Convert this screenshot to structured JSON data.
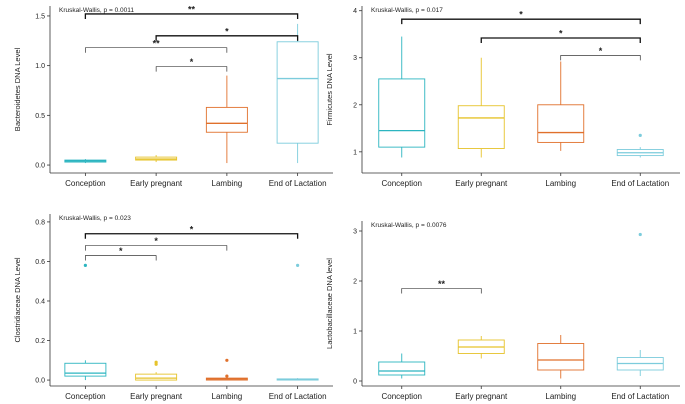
{
  "categories": [
    "Conception",
    "Early pregnant",
    "Lambing",
    "End of Lactation"
  ],
  "colors": {
    "Conception": "#2CB5C0",
    "Early pregnant": "#E6C32B",
    "Lambing": "#E0702C",
    "End of Lactation": "#7CCCDC"
  },
  "chart_data": [
    {
      "id": "bacteroidetes",
      "type": "box",
      "ylabel": "Bacteroidetes DNA Level",
      "test_label": "Kruskal-Wallis, p = 0.0011",
      "ylim": [
        -0.08,
        1.6
      ],
      "yticks": [
        0.0,
        0.5,
        1.0,
        1.5
      ],
      "ytick_labels": [
        "0.0",
        "0.5",
        "1.0",
        "1.5"
      ],
      "boxes": [
        {
          "category": "Conception",
          "min": 0.02,
          "q1": 0.03,
          "median": 0.04,
          "q3": 0.05,
          "max": 0.06,
          "outliers": []
        },
        {
          "category": "Early pregnant",
          "min": 0.03,
          "q1": 0.05,
          "median": 0.06,
          "q3": 0.08,
          "max": 0.1,
          "outliers": []
        },
        {
          "category": "Lambing",
          "min": 0.02,
          "q1": 0.33,
          "median": 0.42,
          "q3": 0.58,
          "max": 0.9,
          "outliers": []
        },
        {
          "category": "End of Lactation",
          "min": 0.02,
          "q1": 0.22,
          "median": 0.87,
          "q3": 1.24,
          "max": 1.42,
          "outliers": []
        }
      ],
      "brackets": [
        {
          "from": "Conception",
          "to": "End of Lactation",
          "y": 1.52,
          "label": "**",
          "bold": true
        },
        {
          "from": "Early pregnant",
          "to": "End of Lactation",
          "y": 1.3,
          "label": "*",
          "bold": true
        },
        {
          "from": "Conception",
          "to": "Lambing",
          "y": 1.18,
          "label": "**",
          "bold": false
        },
        {
          "from": "Early pregnant",
          "to": "Lambing",
          "y": 0.99,
          "label": "*",
          "bold": false
        }
      ]
    },
    {
      "id": "firmicutes",
      "type": "box",
      "ylabel": "Firmicutes DNA Level",
      "test_label": "Kruskal-Wallis, p = 0.017",
      "ylim": [
        0.55,
        4.1
      ],
      "yticks": [
        1,
        2,
        3,
        4
      ],
      "ytick_labels": [
        "1",
        "2",
        "3",
        "4"
      ],
      "boxes": [
        {
          "category": "Conception",
          "min": 0.88,
          "q1": 1.1,
          "median": 1.45,
          "q3": 2.55,
          "max": 3.45,
          "outliers": []
        },
        {
          "category": "Early pregnant",
          "min": 0.88,
          "q1": 1.07,
          "median": 1.72,
          "q3": 1.98,
          "max": 3.0,
          "outliers": []
        },
        {
          "category": "Lambing",
          "min": 1.02,
          "q1": 1.2,
          "median": 1.41,
          "q3": 2.0,
          "max": 2.92,
          "outliers": []
        },
        {
          "category": "End of Lactation",
          "min": 0.88,
          "q1": 0.92,
          "median": 0.98,
          "q3": 1.05,
          "max": 1.1,
          "outliers": [
            1.35
          ]
        }
      ],
      "brackets": [
        {
          "from": "Conception",
          "to": "End of Lactation",
          "y": 3.82,
          "label": "*",
          "bold": true
        },
        {
          "from": "Early pregnant",
          "to": "End of Lactation",
          "y": 3.42,
          "label": "*",
          "bold": true
        },
        {
          "from": "Lambing",
          "to": "End of Lactation",
          "y": 3.05,
          "label": "*",
          "bold": false
        }
      ]
    },
    {
      "id": "clostridiaceae",
      "type": "box",
      "ylabel": "Clostridiaceae DNA Level",
      "test_label": "Kruskal-Wallis, p = 0.023",
      "ylim": [
        -0.03,
        0.84
      ],
      "yticks": [
        0.0,
        0.2,
        0.4,
        0.6,
        0.8
      ],
      "ytick_labels": [
        "0.0",
        "0.2",
        "0.4",
        "0.6",
        "0.8"
      ],
      "boxes": [
        {
          "category": "Conception",
          "min": 0.0,
          "q1": 0.02,
          "median": 0.035,
          "q3": 0.085,
          "max": 0.1,
          "outliers": [
            0.58
          ]
        },
        {
          "category": "Early pregnant",
          "min": 0.0,
          "q1": 0.0,
          "median": 0.01,
          "q3": 0.03,
          "max": 0.04,
          "outliers": [
            0.08,
            0.09
          ]
        },
        {
          "category": "Lambing",
          "min": 0.0,
          "q1": 0.0,
          "median": 0.005,
          "q3": 0.01,
          "max": 0.015,
          "outliers": [
            0.1,
            0.02
          ]
        },
        {
          "category": "End of Lactation",
          "min": 0.0,
          "q1": 0.0,
          "median": 0.003,
          "q3": 0.006,
          "max": 0.01,
          "outliers": [
            0.58
          ]
        }
      ],
      "brackets": [
        {
          "from": "Conception",
          "to": "End of Lactation",
          "y": 0.74,
          "label": "*",
          "bold": true
        },
        {
          "from": "Conception",
          "to": "Lambing",
          "y": 0.68,
          "label": "*",
          "bold": false
        },
        {
          "from": "Conception",
          "to": "Early pregnant",
          "y": 0.63,
          "label": "*",
          "bold": false
        }
      ]
    },
    {
      "id": "lactobacillaceae",
      "type": "box",
      "ylabel": "Lactobacillaceae DNA level",
      "test_label": "Kruskal-Wallis, p = 0.0076",
      "ylim": [
        -0.1,
        3.2
      ],
      "yticks": [
        0,
        1,
        2,
        3
      ],
      "ytick_labels": [
        "0",
        "1",
        "2",
        "3"
      ],
      "boxes": [
        {
          "category": "Conception",
          "min": 0.05,
          "q1": 0.12,
          "median": 0.2,
          "q3": 0.38,
          "max": 0.55,
          "outliers": []
        },
        {
          "category": "Early pregnant",
          "min": 0.45,
          "q1": 0.55,
          "median": 0.68,
          "q3": 0.82,
          "max": 0.9,
          "outliers": []
        },
        {
          "category": "Lambing",
          "min": 0.05,
          "q1": 0.22,
          "median": 0.42,
          "q3": 0.75,
          "max": 0.92,
          "outliers": []
        },
        {
          "category": "End of Lactation",
          "min": 0.1,
          "q1": 0.22,
          "median": 0.35,
          "q3": 0.47,
          "max": 0.62,
          "outliers": [
            2.93
          ]
        }
      ],
      "brackets": [
        {
          "from": "Conception",
          "to": "Early pregnant",
          "y": 1.85,
          "label": "**",
          "bold": false
        }
      ]
    }
  ]
}
